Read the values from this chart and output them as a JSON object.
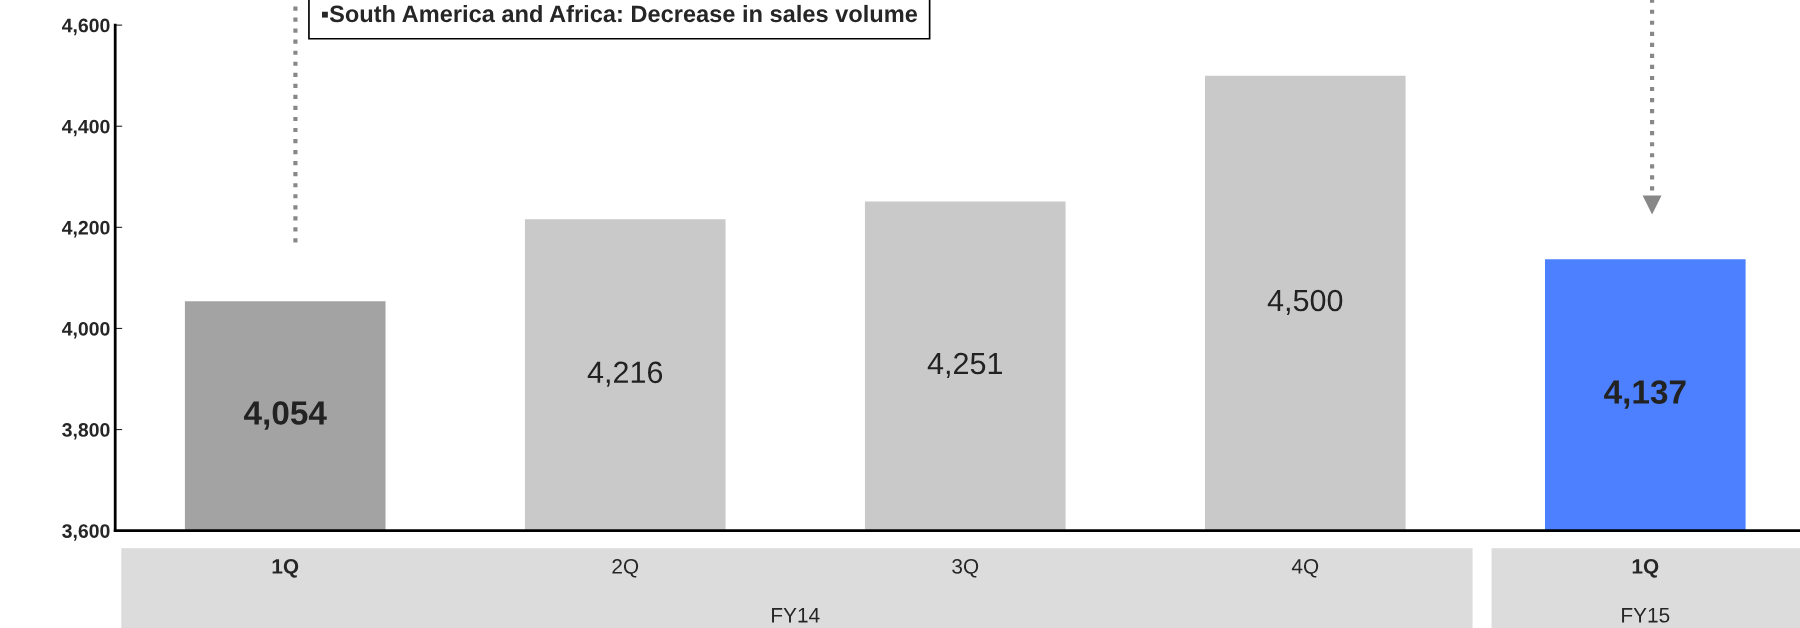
{
  "chart_data": {
    "type": "bar",
    "categories": [
      "1Q",
      "2Q",
      "3Q",
      "4Q",
      "1Q"
    ],
    "values": [
      4054,
      4216,
      4251,
      4500,
      4137
    ],
    "value_labels": [
      "4,054",
      "4,216",
      "4,251",
      "4,500",
      "4,137"
    ],
    "colors": [
      "#a3a3a3",
      "#c9c9c9",
      "#c9c9c9",
      "#c9c9c9",
      "#4d80ff"
    ],
    "ylim": [
      3600,
      4600
    ],
    "yticks": [
      {
        "value": 3600,
        "label": "3,600"
      },
      {
        "value": 3800,
        "label": "3,800"
      },
      {
        "value": 4000,
        "label": "4,000"
      },
      {
        "value": 4200,
        "label": "4,200"
      },
      {
        "value": 4400,
        "label": "4,400"
      },
      {
        "value": 4600,
        "label": "4,600"
      }
    ],
    "grid": false,
    "annotations": [
      "▪South America and Africa: Decrease in sales volume",
      "FY14",
      "FY15"
    ]
  }
}
